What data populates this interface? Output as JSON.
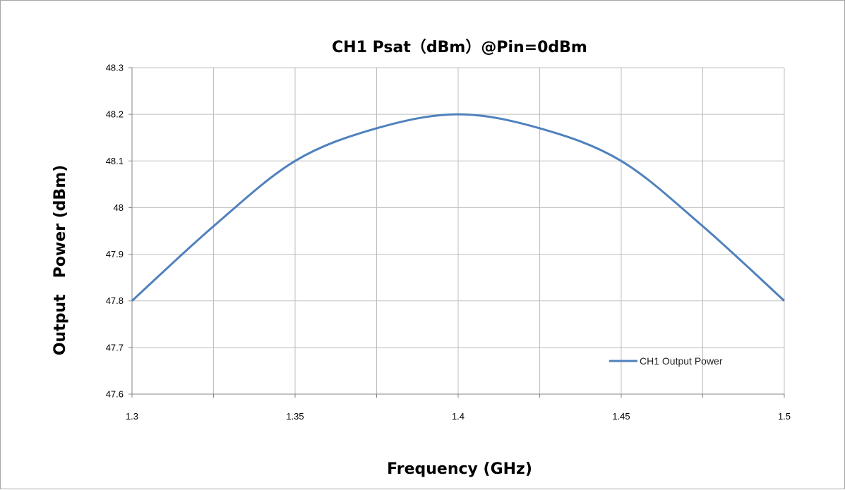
{
  "chart_data": {
    "type": "line",
    "title": "CH1 Psat（dBm）@Pin=0dBm",
    "xlabel": "Frequency (GHz)",
    "ylabel": "Output   Power (dBm)",
    "xlim": [
      1.3,
      1.5
    ],
    "ylim": [
      47.6,
      48.3
    ],
    "x_ticks": [
      "1.3",
      "1.35",
      "1.4",
      "1.45",
      "1.5"
    ],
    "y_ticks": [
      "47.6",
      "47.7",
      "47.8",
      "47.9",
      "48",
      "48.1",
      "48.2",
      "48.3"
    ],
    "grid": true,
    "legend_position": "bottom-right",
    "series": [
      {
        "name": "CH1 Output Power",
        "color": "#4f81bd",
        "x": [
          1.3,
          1.325,
          1.35,
          1.375,
          1.4,
          1.425,
          1.45,
          1.475,
          1.5
        ],
        "y": [
          47.8,
          47.96,
          48.1,
          48.17,
          48.2,
          48.17,
          48.1,
          47.96,
          47.8
        ]
      }
    ]
  }
}
